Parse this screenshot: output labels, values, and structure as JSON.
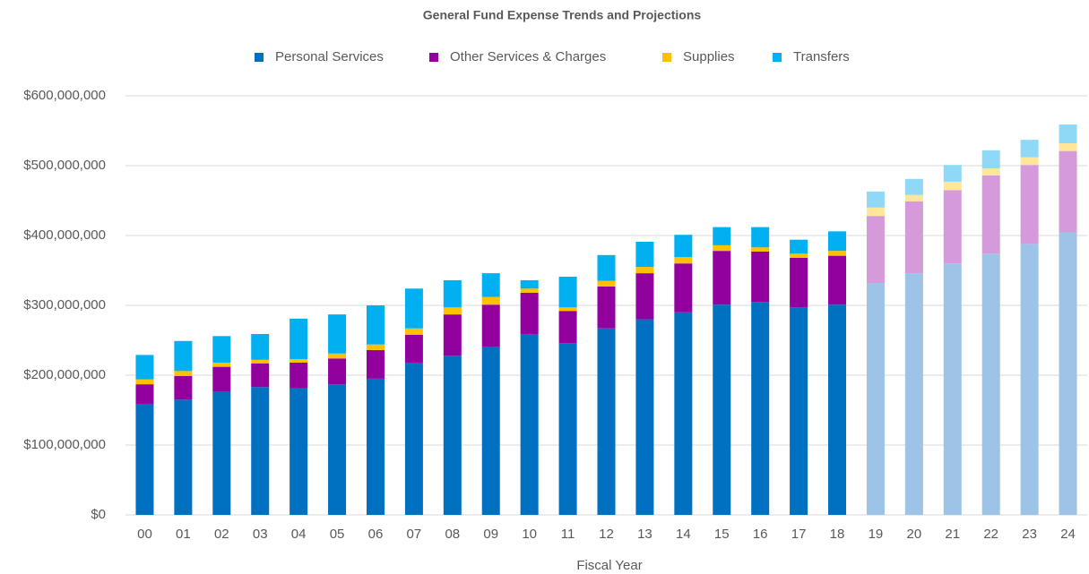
{
  "chart_data": {
    "type": "stacked_bar",
    "title": "General Fund Expense Trends and Projections",
    "x_label": "Fiscal Year",
    "categories": [
      "00",
      "01",
      "02",
      "03",
      "04",
      "05",
      "06",
      "07",
      "08",
      "09",
      "10",
      "11",
      "12",
      "13",
      "14",
      "15",
      "16",
      "17",
      "18",
      "19",
      "20",
      "21",
      "22",
      "23",
      "24"
    ],
    "projection_start": "19",
    "series": [
      {
        "name": "Personal Services",
        "color": "#0070c0",
        "projection_color": "#9dc3e6",
        "values": [
          159000000,
          165000000,
          176000000,
          183000000,
          181000000,
          187000000,
          195000000,
          218000000,
          228000000,
          241000000,
          259000000,
          246000000,
          267000000,
          280000000,
          290000000,
          301000000,
          305000000,
          297000000,
          301000000,
          332000000,
          346000000,
          360000000,
          374000000,
          388000000,
          404000000
        ]
      },
      {
        "name": "Other Services & Charges",
        "color": "#92009e",
        "projection_color": "#d59ad9",
        "values": [
          28000000,
          34000000,
          36000000,
          34000000,
          37000000,
          37000000,
          41000000,
          40000000,
          59000000,
          60000000,
          59000000,
          46000000,
          60000000,
          66000000,
          70000000,
          77000000,
          72000000,
          71000000,
          70000000,
          96000000,
          103000000,
          105000000,
          112000000,
          113000000,
          117000000
        ]
      },
      {
        "name": "Supplies",
        "color": "#ffc000",
        "projection_color": "#ffe699",
        "values": [
          7000000,
          7000000,
          6000000,
          5000000,
          5000000,
          7000000,
          8000000,
          9000000,
          10000000,
          11000000,
          6000000,
          5000000,
          8000000,
          9000000,
          9000000,
          8000000,
          6000000,
          6000000,
          7000000,
          12000000,
          9000000,
          12000000,
          10000000,
          11000000,
          11000000
        ]
      },
      {
        "name": "Transfers",
        "color": "#00b0f0",
        "projection_color": "#8fd9f7",
        "values": [
          35000000,
          43000000,
          38000000,
          37000000,
          58000000,
          56000000,
          56000000,
          57000000,
          39000000,
          34000000,
          12000000,
          44000000,
          37000000,
          36000000,
          32000000,
          26000000,
          29000000,
          20000000,
          28000000,
          23000000,
          23000000,
          24000000,
          26000000,
          25000000,
          27000000
        ]
      }
    ],
    "ylim": [
      0,
      600000000
    ],
    "yticks": [
      {
        "value": 0,
        "label": "$0"
      },
      {
        "value": 100000000,
        "label": "$100,000,000"
      },
      {
        "value": 200000000,
        "label": "$200,000,000"
      },
      {
        "value": 300000000,
        "label": "$300,000,000"
      },
      {
        "value": 400000000,
        "label": "$400,000,000"
      },
      {
        "value": 500000000,
        "label": "$500,000,000"
      },
      {
        "value": 600000000,
        "label": "$600,000,000"
      }
    ],
    "grid": true,
    "legend": "top"
  }
}
